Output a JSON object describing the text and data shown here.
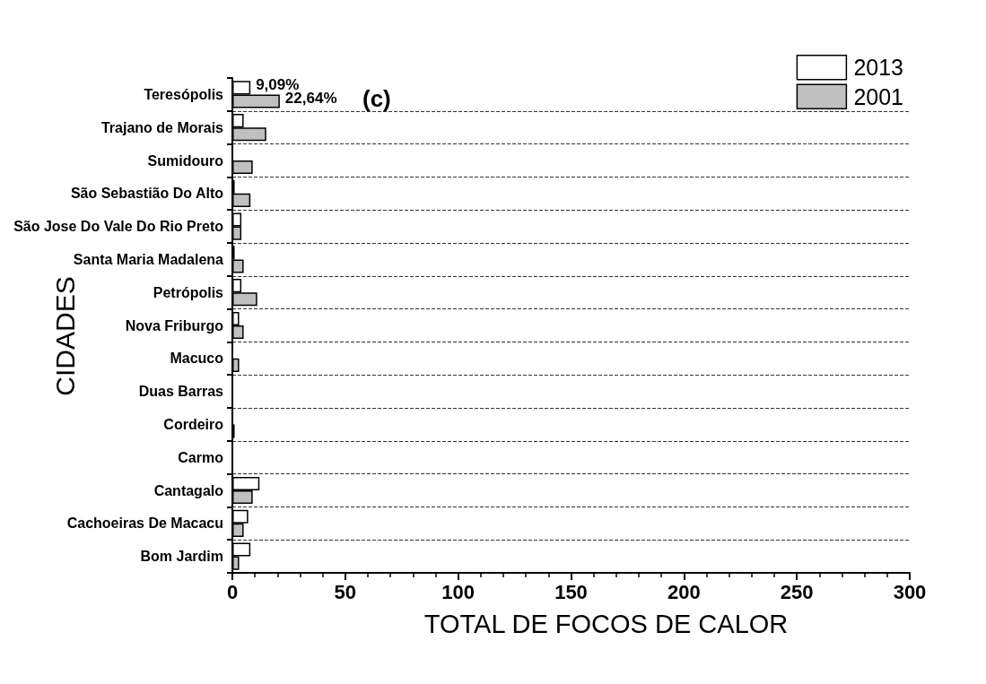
{
  "chart_data": {
    "type": "bar",
    "orientation": "horizontal",
    "xlabel": "TOTAL DE FOCOS DE CALOR",
    "ylabel": "CIDADES",
    "annotations": [
      "(c)",
      {
        "text": "9,09%",
        "x": 8,
        "y": "Teresópolis"
      },
      {
        "text": "22,64%",
        "x": 21,
        "y": "Teresópolis"
      }
    ],
    "categories": [
      "Teresópolis",
      "Trajano de Morais",
      "Sumidouro",
      "São Sebastião Do Alto",
      "São Jose Do Vale Do Rio Preto",
      "Santa Maria Madalena",
      "Petrópolis",
      "Nova Friburgo",
      "Macuco",
      "Duas Barras",
      "Cordeiro",
      "Carmo",
      "Cantagalo",
      "Cachoeiras De Macacu",
      "Bom Jardim"
    ],
    "series": [
      {
        "name": "2013",
        "color": "#ffffff",
        "values": [
          8,
          5,
          0,
          1,
          4,
          1,
          4,
          3,
          0,
          0,
          0,
          0,
          12,
          7,
          8
        ]
      },
      {
        "name": "2001",
        "color": "#c0c0c0",
        "values": [
          21,
          15,
          9,
          8,
          4,
          5,
          11,
          5,
          3,
          0,
          1,
          0,
          9,
          5,
          3
        ]
      }
    ],
    "xlim": [
      0,
      300
    ],
    "xticks": [
      0,
      50,
      100,
      150,
      200,
      250,
      300
    ],
    "grid": "y",
    "legend": "top right"
  }
}
